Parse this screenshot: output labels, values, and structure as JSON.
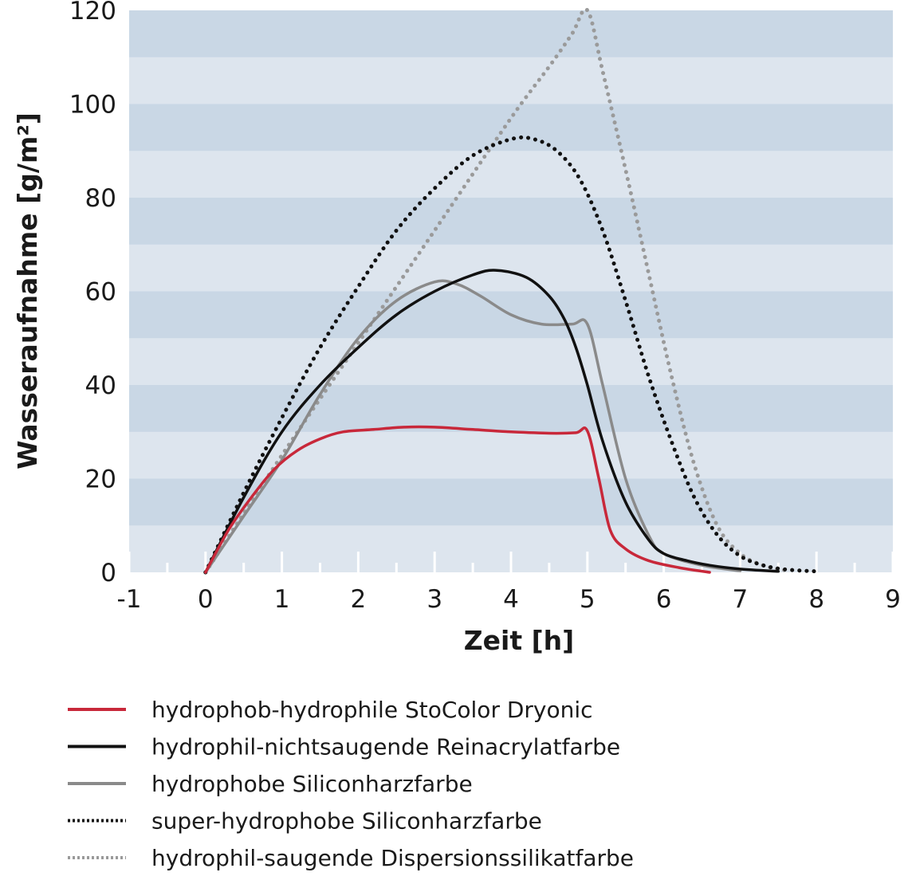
{
  "chart_data": {
    "type": "line",
    "title": "",
    "xlabel": "Zeit [h]",
    "ylabel": "Wasseraufnahme [g/m²]",
    "xlim": [
      -1,
      9
    ],
    "ylim": [
      0,
      120
    ],
    "xticks": [
      "-1",
      "0",
      "1",
      "2",
      "3",
      "4",
      "5",
      "6",
      "7",
      "8",
      "9"
    ],
    "yticks": [
      "0",
      "20",
      "40",
      "60",
      "80",
      "100",
      "120"
    ],
    "grid": "horizontal bands",
    "legend_position": "bottom",
    "colors": {
      "plot_background": "#dde5ee",
      "band": "#c9d7e5",
      "red": "#c8283a",
      "black": "#111111",
      "gray": "#8a8a8a",
      "light_gray": "#9a9a9a"
    },
    "series": [
      {
        "name": "hydrophob-hydrophile StoColor Dryonic",
        "style": "solid",
        "color": "#c8283a",
        "x": [
          0,
          0.3,
          0.6,
          0.9,
          1.2,
          1.5,
          1.8,
          2.2,
          2.6,
          3.0,
          3.5,
          4.0,
          4.5,
          4.85,
          5.0,
          5.15,
          5.3,
          5.5,
          5.8,
          6.2,
          6.6
        ],
        "y": [
          0,
          9,
          16,
          22,
          26,
          28.5,
          30,
          30.5,
          31,
          31,
          30.5,
          30,
          29.7,
          29.8,
          30.2,
          20,
          9,
          5,
          2.5,
          1,
          0
        ]
      },
      {
        "name": "hydrophil-nichtsaugende Reinacrylatfarbe",
        "style": "solid",
        "color": "#111111",
        "x": [
          0,
          0.5,
          1.0,
          1.5,
          2.0,
          2.5,
          3.0,
          3.5,
          3.8,
          4.2,
          4.5,
          4.7,
          4.85,
          5.0,
          5.2,
          5.5,
          5.8,
          6.0,
          6.3,
          6.6,
          7.0,
          7.5
        ],
        "y": [
          0,
          16,
          30,
          40,
          48,
          55,
          60,
          63.5,
          64.5,
          63,
          59,
          54,
          48,
          40,
          28,
          15,
          7,
          4,
          2.5,
          1.5,
          0.7,
          0.2
        ]
      },
      {
        "name": "hydrophobe Siliconharzfarbe",
        "style": "solid",
        "color": "#8a8a8a",
        "x": [
          0,
          0.5,
          1.0,
          1.5,
          2.0,
          2.5,
          3.0,
          3.3,
          3.6,
          4.0,
          4.4,
          4.8,
          5.0,
          5.2,
          5.5,
          5.8,
          6.0,
          6.5,
          7.0
        ],
        "y": [
          0,
          12,
          24,
          38,
          50,
          58,
          62,
          61.5,
          59,
          55,
          53,
          53,
          53,
          40,
          20,
          8,
          4,
          1.5,
          0.3
        ]
      },
      {
        "name": "super-hydrophobe Siliconharzfarbe",
        "style": "dotted",
        "color": "#111111",
        "x": [
          0,
          0.5,
          1.0,
          1.5,
          2.0,
          2.5,
          3.0,
          3.5,
          4.0,
          4.3,
          4.6,
          4.9,
          5.2,
          5.5,
          5.8,
          6.1,
          6.4,
          6.7,
          7.0,
          7.3,
          7.6,
          8.0
        ],
        "y": [
          0,
          17,
          33,
          48,
          61,
          73,
          82,
          89,
          92.5,
          92.5,
          90,
          84,
          73,
          58,
          42,
          28,
          16,
          8,
          3.5,
          1.5,
          0.6,
          0.2
        ]
      },
      {
        "name": "hydrophil-saugende Dispersionssilikatfarbe",
        "style": "dotted",
        "color": "#9a9a9a",
        "x": [
          0,
          1.0,
          2.0,
          3.0,
          4.0,
          4.5,
          4.8,
          5.0,
          5.2,
          5.5,
          5.8,
          6.1,
          6.4,
          6.7,
          7.0,
          7.3,
          7.6
        ],
        "y": [
          0,
          25,
          49,
          73,
          97,
          108,
          115,
          120,
          107,
          86,
          64,
          42,
          23,
          10,
          4,
          1.5,
          0.4
        ]
      }
    ]
  }
}
